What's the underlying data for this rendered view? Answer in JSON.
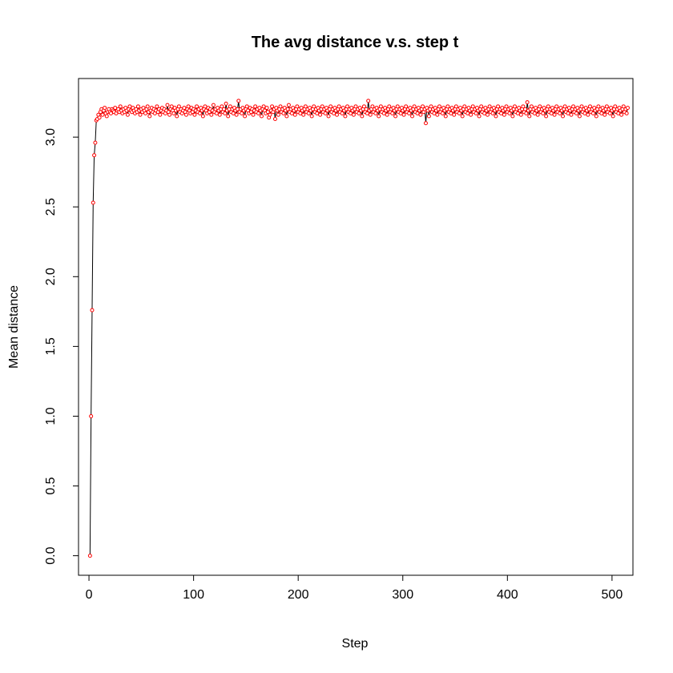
{
  "chart_data": {
    "type": "line",
    "title": "The avg distance v.s. step t",
    "xlabel": "Step",
    "ylabel": "Mean distance",
    "xlim": [
      -10,
      520
    ],
    "ylim": [
      -0.14,
      3.42
    ],
    "x_ticks": [
      0,
      100,
      200,
      300,
      400,
      500
    ],
    "x_tick_labels": [
      "0",
      "100",
      "200",
      "300",
      "400",
      "500"
    ],
    "y_ticks": [
      0.0,
      0.5,
      1.0,
      1.5,
      2.0,
      2.5,
      3.0
    ],
    "y_tick_labels": [
      "0.0",
      "0.5",
      "1.0",
      "1.5",
      "2.0",
      "2.5",
      "3.0"
    ],
    "grid": false,
    "legend": "none",
    "line_color": "#000000",
    "point_color": "#ff0000",
    "series": [
      {
        "x_start": 1,
        "x_step": 1,
        "values": [
          0.0,
          1.0,
          1.76,
          2.53,
          2.87,
          2.96,
          3.12,
          3.13,
          3.16,
          3.14,
          3.18,
          3.2,
          3.16,
          3.19,
          3.21,
          3.17,
          3.15,
          3.18,
          3.2,
          3.18,
          3.17,
          3.2,
          3.19,
          3.18,
          3.21,
          3.17,
          3.19,
          3.2,
          3.18,
          3.22,
          3.19,
          3.17,
          3.2,
          3.18,
          3.21,
          3.19,
          3.16,
          3.2,
          3.22,
          3.19,
          3.18,
          3.21,
          3.19,
          3.17,
          3.2,
          3.18,
          3.22,
          3.19,
          3.16,
          3.2,
          3.18,
          3.21,
          3.19,
          3.17,
          3.2,
          3.22,
          3.18,
          3.15,
          3.19,
          3.21,
          3.18,
          3.2,
          3.17,
          3.19,
          3.22,
          3.18,
          3.2,
          3.16,
          3.19,
          3.21,
          3.18,
          3.2,
          3.17,
          3.19,
          3.23,
          3.18,
          3.16,
          3.2,
          3.22,
          3.19,
          3.17,
          3.21,
          3.19,
          3.15,
          3.2,
          3.22,
          3.18,
          3.2,
          3.17,
          3.19,
          3.21,
          3.18,
          3.16,
          3.2,
          3.22,
          3.19,
          3.17,
          3.21,
          3.18,
          3.2,
          3.16,
          3.19,
          3.22,
          3.18,
          3.2,
          3.17,
          3.21,
          3.19,
          3.15,
          3.2,
          3.22,
          3.19,
          3.17,
          3.21,
          3.18,
          3.2,
          3.16,
          3.19,
          3.23,
          3.18,
          3.2,
          3.17,
          3.21,
          3.19,
          3.16,
          3.2,
          3.22,
          3.18,
          3.2,
          3.17,
          3.24,
          3.19,
          3.15,
          3.2,
          3.22,
          3.18,
          3.2,
          3.17,
          3.21,
          3.19,
          3.16,
          3.2,
          3.26,
          3.18,
          3.2,
          3.17,
          3.21,
          3.19,
          3.15,
          3.2,
          3.22,
          3.19,
          3.17,
          3.21,
          3.18,
          3.2,
          3.16,
          3.19,
          3.22,
          3.18,
          3.2,
          3.17,
          3.21,
          3.19,
          3.15,
          3.2,
          3.22,
          3.19,
          3.17,
          3.21,
          3.18,
          3.14,
          3.16,
          3.19,
          3.22,
          3.18,
          3.2,
          3.13,
          3.21,
          3.19,
          3.16,
          3.2,
          3.22,
          3.18,
          3.2,
          3.17,
          3.21,
          3.19,
          3.15,
          3.2,
          3.23,
          3.18,
          3.2,
          3.17,
          3.21,
          3.19,
          3.16,
          3.2,
          3.22,
          3.18,
          3.2,
          3.17,
          3.21,
          3.19,
          3.16,
          3.2,
          3.22,
          3.18,
          3.2,
          3.17,
          3.21,
          3.19,
          3.15,
          3.2,
          3.22,
          3.18,
          3.2,
          3.17,
          3.21,
          3.19,
          3.16,
          3.2,
          3.22,
          3.18,
          3.2,
          3.17,
          3.21,
          3.19,
          3.15,
          3.2,
          3.22,
          3.18,
          3.2,
          3.17,
          3.21,
          3.19,
          3.16,
          3.2,
          3.22,
          3.18,
          3.2,
          3.17,
          3.21,
          3.19,
          3.15,
          3.2,
          3.22,
          3.18,
          3.2,
          3.17,
          3.21,
          3.19,
          3.16,
          3.2,
          3.22,
          3.18,
          3.2,
          3.17,
          3.21,
          3.19,
          3.15,
          3.2,
          3.22,
          3.18,
          3.2,
          3.17,
          3.26,
          3.19,
          3.16,
          3.2,
          3.22,
          3.18,
          3.2,
          3.17,
          3.21,
          3.19,
          3.15,
          3.2,
          3.22,
          3.18,
          3.2,
          3.17,
          3.21,
          3.19,
          3.16,
          3.2,
          3.22,
          3.18,
          3.2,
          3.17,
          3.21,
          3.19,
          3.15,
          3.2,
          3.22,
          3.18,
          3.2,
          3.17,
          3.21,
          3.19,
          3.16,
          3.2,
          3.22,
          3.18,
          3.2,
          3.17,
          3.21,
          3.19,
          3.15,
          3.2,
          3.22,
          3.18,
          3.2,
          3.17,
          3.21,
          3.19,
          3.16,
          3.2,
          3.22,
          3.18,
          3.2,
          3.1,
          3.21,
          3.19,
          3.15,
          3.2,
          3.22,
          3.18,
          3.2,
          3.17,
          3.21,
          3.19,
          3.16,
          3.2,
          3.22,
          3.18,
          3.2,
          3.17,
          3.21,
          3.19,
          3.15,
          3.2,
          3.22,
          3.18,
          3.2,
          3.17,
          3.21,
          3.19,
          3.16,
          3.2,
          3.22,
          3.18,
          3.2,
          3.17,
          3.21,
          3.19,
          3.15,
          3.2,
          3.22,
          3.18,
          3.2,
          3.17,
          3.21,
          3.19,
          3.16,
          3.2,
          3.22,
          3.18,
          3.2,
          3.17,
          3.21,
          3.19,
          3.15,
          3.2,
          3.22,
          3.18,
          3.2,
          3.17,
          3.21,
          3.19,
          3.16,
          3.2,
          3.22,
          3.18,
          3.2,
          3.17,
          3.21,
          3.19,
          3.15,
          3.2,
          3.22,
          3.18,
          3.2,
          3.17,
          3.21,
          3.19,
          3.16,
          3.2,
          3.22,
          3.18,
          3.2,
          3.17,
          3.21,
          3.19,
          3.15,
          3.2,
          3.22,
          3.18,
          3.2,
          3.17,
          3.21,
          3.19,
          3.16,
          3.2,
          3.22,
          3.18,
          3.2,
          3.17,
          3.25,
          3.19,
          3.15,
          3.2,
          3.22,
          3.18,
          3.2,
          3.17,
          3.21,
          3.19,
          3.16,
          3.2,
          3.22,
          3.18,
          3.2,
          3.17,
          3.21,
          3.19,
          3.15,
          3.2,
          3.22,
          3.18,
          3.2,
          3.17,
          3.21,
          3.19,
          3.16,
          3.2,
          3.22,
          3.18,
          3.2,
          3.17,
          3.21,
          3.19,
          3.15,
          3.2,
          3.22,
          3.18,
          3.2,
          3.17,
          3.21,
          3.19,
          3.16,
          3.2,
          3.22,
          3.18,
          3.2,
          3.17,
          3.21,
          3.19,
          3.15,
          3.2,
          3.22,
          3.18,
          3.2,
          3.17,
          3.21,
          3.19,
          3.16,
          3.2,
          3.22,
          3.18,
          3.2,
          3.17,
          3.21,
          3.19,
          3.15,
          3.2,
          3.22,
          3.18,
          3.2,
          3.17,
          3.21,
          3.19,
          3.16,
          3.2,
          3.22,
          3.18,
          3.2,
          3.17,
          3.21,
          3.19,
          3.15,
          3.2,
          3.22,
          3.18,
          3.2,
          3.17,
          3.21,
          3.19,
          3.16,
          3.2,
          3.22,
          3.18,
          3.2,
          3.17,
          3.21
        ]
      }
    ]
  }
}
